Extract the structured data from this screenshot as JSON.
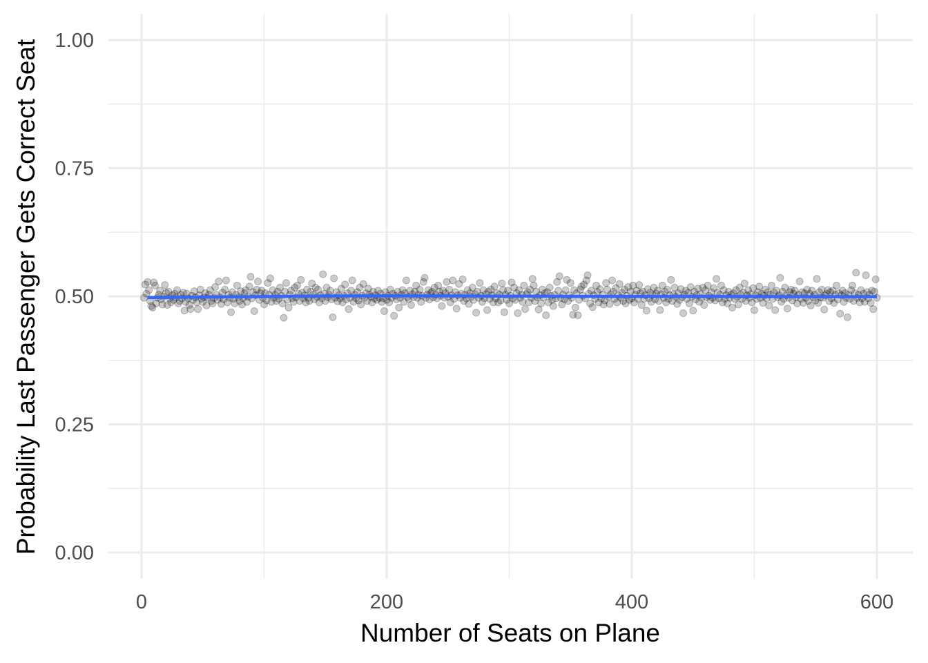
{
  "chart_data": {
    "type": "scatter",
    "title": "",
    "xlabel": "Number of Seats on Plane",
    "ylabel": "Probability Last Passenger Gets Correct Seat",
    "xlim": [
      -27,
      630
    ],
    "ylim": [
      -0.05,
      1.05
    ],
    "x_ticks": [
      0,
      200,
      400,
      600
    ],
    "x_tick_labels": [
      "0",
      "200",
      "400",
      "600"
    ],
    "y_ticks": [
      0,
      0.25,
      0.5,
      0.75,
      1
    ],
    "y_tick_labels": [
      "0.00",
      "0.25",
      "0.50",
      "0.75",
      "1.00"
    ],
    "x_minor_ticks": [
      100,
      300,
      500
    ],
    "y_minor_ticks": [
      0.125,
      0.375,
      0.625,
      0.875
    ],
    "grid": true,
    "legend": "none",
    "point_color": "#000000",
    "point_alpha": 0.2,
    "fit_line_color": "#3366ff",
    "points": {
      "x_start": 2,
      "x_end": 600,
      "x_step": 1,
      "y": [
        0.497,
        0.523,
        0.505,
        0.528,
        0.512,
        0.491,
        0.481,
        0.478,
        0.527,
        0.521,
        0.486,
        0.497,
        0.503,
        0.511,
        0.494,
        0.484,
        0.499,
        0.522,
        0.507,
        0.483,
        0.509,
        0.496,
        0.488,
        0.502,
        0.493,
        0.505,
        0.498,
        0.512,
        0.486,
        0.491,
        0.503,
        0.496,
        0.507,
        0.472,
        0.489,
        0.505,
        0.496,
        0.483,
        0.475,
        0.501,
        0.493,
        0.51,
        0.498,
        0.488,
        0.475,
        0.502,
        0.513,
        0.495,
        0.489,
        0.498,
        0.506,
        0.482,
        0.497,
        0.503,
        0.512,
        0.491,
        0.486,
        0.497,
        0.518,
        0.503,
        0.493,
        0.529,
        0.498,
        0.485,
        0.507,
        0.494,
        0.513,
        0.531,
        0.488,
        0.503,
        0.497,
        0.469,
        0.508,
        0.495,
        0.486,
        0.503,
        0.521,
        0.498,
        0.491,
        0.51,
        0.484,
        0.497,
        0.506,
        0.512,
        0.489,
        0.499,
        0.519,
        0.538,
        0.496,
        0.508,
        0.471,
        0.502,
        0.513,
        0.529,
        0.493,
        0.506,
        0.511,
        0.497,
        0.484,
        0.506,
        0.492,
        0.526,
        0.503,
        0.535,
        0.489,
        0.512,
        0.497,
        0.503,
        0.491,
        0.509,
        0.495,
        0.517,
        0.501,
        0.486,
        0.458,
        0.509,
        0.526,
        0.493,
        0.478,
        0.503,
        0.511,
        0.496,
        0.489,
        0.517,
        0.498,
        0.521,
        0.505,
        0.491,
        0.532,
        0.507,
        0.496,
        0.502,
        0.488,
        0.513,
        0.497,
        0.491,
        0.509,
        0.525,
        0.503,
        0.494,
        0.517,
        0.499,
        0.513,
        0.488,
        0.502,
        0.496,
        0.543,
        0.505,
        0.491,
        0.517,
        0.498,
        0.503,
        0.511,
        0.494,
        0.459,
        0.535,
        0.497,
        0.508,
        0.49,
        0.502,
        0.496,
        0.515,
        0.488,
        0.501,
        0.523,
        0.494,
        0.506,
        0.475,
        0.497,
        0.511,
        0.531,
        0.489,
        0.503,
        0.496,
        0.508,
        0.492,
        0.517,
        0.484,
        0.501,
        0.524,
        0.497,
        0.506,
        0.491,
        0.515,
        0.503,
        0.499,
        0.488,
        0.509,
        0.496,
        0.502,
        0.493,
        0.511,
        0.497,
        0.505,
        0.489,
        0.496,
        0.471,
        0.508,
        0.493,
        0.501,
        0.488,
        0.513,
        0.497,
        0.505,
        0.462,
        0.501,
        0.494,
        0.509,
        0.478,
        0.497,
        0.503,
        0.512,
        0.489,
        0.506,
        0.531,
        0.499,
        0.495,
        0.511,
        0.483,
        0.504,
        0.498,
        0.509,
        0.521,
        0.497,
        0.503,
        0.513,
        0.489,
        0.501,
        0.528,
        0.536,
        0.497,
        0.503,
        0.512,
        0.494,
        0.506,
        0.509,
        0.498,
        0.517,
        0.503,
        0.496,
        0.521,
        0.509,
        0.501,
        0.481,
        0.511,
        0.497,
        0.506,
        0.528,
        0.499,
        0.513,
        0.488,
        0.502,
        0.531,
        0.495,
        0.508,
        0.476,
        0.502,
        0.524,
        0.497,
        0.505,
        0.533,
        0.491,
        0.503,
        0.496,
        0.512,
        0.485,
        0.506,
        0.499,
        0.517,
        0.493,
        0.504,
        0.468,
        0.509,
        0.497,
        0.526,
        0.501,
        0.489,
        0.512,
        0.496,
        0.504,
        0.473,
        0.509,
        0.495,
        0.513,
        0.502,
        0.488,
        0.519,
        0.496,
        0.506,
        0.488,
        0.503,
        0.492,
        0.525,
        0.512,
        0.469,
        0.503,
        0.493,
        0.511,
        0.486,
        0.501,
        0.527,
        0.496,
        0.517,
        0.493,
        0.506,
        0.467,
        0.512,
        0.497,
        0.503,
        0.489,
        0.521,
        0.475,
        0.504,
        0.508,
        0.488,
        0.513,
        0.497,
        0.534,
        0.521,
        0.491,
        0.509,
        0.498,
        0.474,
        0.502,
        0.486,
        0.513,
        0.498,
        0.506,
        0.463,
        0.508,
        0.488,
        0.517,
        0.501,
        0.493,
        0.481,
        0.503,
        0.496,
        0.528,
        0.511,
        0.539,
        0.497,
        0.484,
        0.503,
        0.494,
        0.512,
        0.532,
        0.491,
        0.502,
        0.526,
        0.497,
        0.464,
        0.512,
        0.478,
        0.506,
        0.463,
        0.493,
        0.513,
        0.519,
        0.501,
        0.523,
        0.496,
        0.531,
        0.541,
        0.505,
        0.486,
        0.511,
        0.479,
        0.502,
        0.495,
        0.521,
        0.508,
        0.488,
        0.514,
        0.496,
        0.503,
        0.484,
        0.492,
        0.526,
        0.513,
        0.499,
        0.485,
        0.504,
        0.531,
        0.509,
        0.495,
        0.516,
        0.488,
        0.502,
        0.524,
        0.497,
        0.507,
        0.491,
        0.513,
        0.486,
        0.501,
        0.518,
        0.493,
        0.509,
        0.496,
        0.521,
        0.488,
        0.503,
        0.511,
        0.495,
        0.522,
        0.506,
        0.483,
        0.509,
        0.495,
        0.502,
        0.472,
        0.514,
        0.496,
        0.507,
        0.489,
        0.503,
        0.517,
        0.494,
        0.505,
        0.511,
        0.491,
        0.473,
        0.504,
        0.521,
        0.497,
        0.509,
        0.488,
        0.513,
        0.495,
        0.502,
        0.532,
        0.491,
        0.504,
        0.517,
        0.499,
        0.485,
        0.506,
        0.493,
        0.514,
        0.498,
        0.467,
        0.503,
        0.511,
        0.495,
        0.507,
        0.486,
        0.518,
        0.499,
        0.472,
        0.509,
        0.494,
        0.502,
        0.515,
        0.489,
        0.504,
        0.497,
        0.517,
        0.483,
        0.512,
        0.498,
        0.521,
        0.501,
        0.493,
        0.508,
        0.497,
        0.516,
        0.492,
        0.534,
        0.507,
        0.496,
        0.503,
        0.521,
        0.488,
        0.512,
        0.495,
        0.502,
        0.486,
        0.509,
        0.497,
        0.503,
        0.478,
        0.506,
        0.495,
        0.512,
        0.499,
        0.484,
        0.517,
        0.503,
        0.495,
        0.507,
        0.525,
        0.491,
        0.502,
        0.512,
        0.497,
        0.504,
        0.488,
        0.516,
        0.473,
        0.502,
        0.495,
        0.508,
        0.519,
        0.497,
        0.505,
        0.487,
        0.501,
        0.513,
        0.496,
        0.508,
        0.482,
        0.503,
        0.521,
        0.495,
        0.507,
        0.473,
        0.511,
        0.498,
        0.502,
        0.536,
        0.489,
        0.509,
        0.495,
        0.517,
        0.502,
        0.476,
        0.497,
        0.508,
        0.513,
        0.492,
        0.505,
        0.511,
        0.498,
        0.486,
        0.503,
        0.529,
        0.495,
        0.508,
        0.487,
        0.506,
        0.497,
        0.513,
        0.491,
        0.505,
        0.482,
        0.511,
        0.498,
        0.503,
        0.492,
        0.534,
        0.487,
        0.508,
        0.498,
        0.513,
        0.497,
        0.474,
        0.502,
        0.505,
        0.512,
        0.491,
        0.508,
        0.496,
        0.511,
        0.487,
        0.503,
        0.521,
        0.494,
        0.506,
        0.466,
        0.502,
        0.511,
        0.489,
        0.506,
        0.497,
        0.459,
        0.503,
        0.495,
        0.512,
        0.521,
        0.491,
        0.506,
        0.546,
        0.497,
        0.503,
        0.488,
        0.512,
        0.496,
        0.505,
        0.489,
        0.541,
        0.508,
        0.496,
        0.503,
        0.487,
        0.511,
        0.475,
        0.509,
        0.533,
        0.497,
        0.517,
        0.503
      ]
    },
    "fit_line": {
      "x": [
        5,
        50,
        100,
        150,
        200,
        250,
        300,
        350,
        400,
        450,
        500,
        550,
        600
      ],
      "y": [
        0.4975,
        0.4985,
        0.4995,
        0.5005,
        0.5008,
        0.5006,
        0.5002,
        0.4998,
        0.4997,
        0.4997,
        0.4995,
        0.4993,
        0.4992
      ]
    }
  }
}
